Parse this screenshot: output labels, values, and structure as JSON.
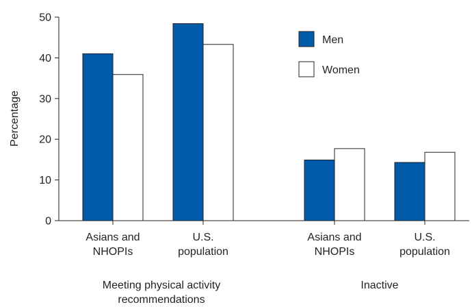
{
  "chart_data": {
    "type": "bar",
    "ylabel": "Percentage",
    "ylim": [
      0,
      50
    ],
    "yticks": [
      0,
      10,
      20,
      30,
      40,
      50
    ],
    "grid": false,
    "legend_position": "top-right",
    "groups": [
      {
        "label_lines": [
          "Meeting physical activity",
          "recommendations"
        ],
        "categories": [
          {
            "label_lines": [
              "Asians and",
              "NHOPIs"
            ]
          },
          {
            "label_lines": [
              "U.S.",
              "population"
            ]
          }
        ]
      },
      {
        "label_lines": [
          "Inactive"
        ],
        "categories": [
          {
            "label_lines": [
              "Asians and",
              "NHOPIs"
            ]
          },
          {
            "label_lines": [
              "U.S.",
              "population"
            ]
          }
        ]
      }
    ],
    "series": [
      {
        "name": "Men",
        "color": "#005baa",
        "values": [
          41.0,
          48.4,
          14.9,
          14.3
        ]
      },
      {
        "name": "Women",
        "color": "#ffffff",
        "values": [
          35.9,
          43.3,
          17.7,
          16.8
        ]
      }
    ]
  }
}
